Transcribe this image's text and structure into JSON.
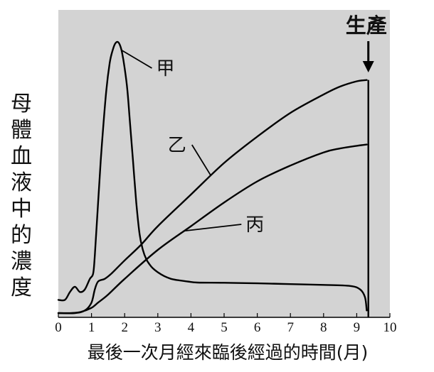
{
  "chart_data": {
    "type": "line",
    "title": "",
    "ylabel": "母體血液中的濃度",
    "xlabel": "最後一次月經來臨後經過的時間(月)",
    "xlim": [
      0,
      10
    ],
    "xticks": [
      0,
      1,
      2,
      3,
      4,
      5,
      6,
      7,
      8,
      9,
      10
    ],
    "y_ticks_shown": false,
    "grid": false,
    "background": "#d3d3d3",
    "line_color": "#000000",
    "annotation": {
      "label": "生產",
      "x": 9.35,
      "marker": "down-arrow"
    },
    "series": [
      {
        "name": "甲",
        "x": [
          0,
          0.2,
          0.35,
          0.5,
          0.65,
          0.8,
          0.95,
          1.05,
          1.1,
          1.2,
          1.28,
          1.35,
          1.45,
          1.55,
          1.62,
          1.7,
          1.78,
          1.85,
          1.92,
          2.0,
          2.08,
          2.15,
          2.25,
          2.35,
          2.45,
          2.55,
          2.65,
          2.75,
          2.85,
          3.0,
          3.2,
          3.4,
          3.6,
          3.9,
          4.2,
          5.0,
          6.0,
          7.0,
          8.0,
          8.8,
          9.1,
          9.25,
          9.3
        ],
        "values": [
          0.05,
          0.05,
          0.08,
          0.1,
          0.08,
          0.09,
          0.13,
          0.15,
          0.22,
          0.42,
          0.58,
          0.7,
          0.85,
          0.95,
          0.99,
          1.02,
          1.03,
          1.02,
          0.99,
          0.93,
          0.85,
          0.74,
          0.58,
          0.42,
          0.3,
          0.24,
          0.205,
          0.185,
          0.17,
          0.155,
          0.14,
          0.13,
          0.125,
          0.12,
          0.116,
          0.115,
          0.113,
          0.11,
          0.107,
          0.103,
          0.09,
          0.06,
          0.01
        ]
      },
      {
        "name": "乙",
        "x": [
          0,
          0.5,
          0.8,
          1.0,
          1.1,
          1.2,
          1.4,
          1.6,
          2.0,
          2.5,
          3.0,
          4.0,
          5.0,
          6.0,
          7.0,
          8.0,
          8.5,
          9.0,
          9.3
        ],
        "values": [
          0.0,
          0.0,
          0.01,
          0.04,
          0.09,
          0.12,
          0.13,
          0.15,
          0.2,
          0.26,
          0.33,
          0.45,
          0.57,
          0.67,
          0.76,
          0.83,
          0.86,
          0.88,
          0.885
        ]
      },
      {
        "name": "丙",
        "x": [
          0,
          0.4,
          0.7,
          1.0,
          1.2,
          1.5,
          2.0,
          3.0,
          4.0,
          5.0,
          6.0,
          7.0,
          8.0,
          8.5,
          9.0,
          9.3
        ],
        "values": [
          0.0,
          0.0,
          0.005,
          0.02,
          0.04,
          0.07,
          0.13,
          0.24,
          0.33,
          0.42,
          0.5,
          0.56,
          0.61,
          0.625,
          0.635,
          0.64
        ]
      }
    ]
  }
}
